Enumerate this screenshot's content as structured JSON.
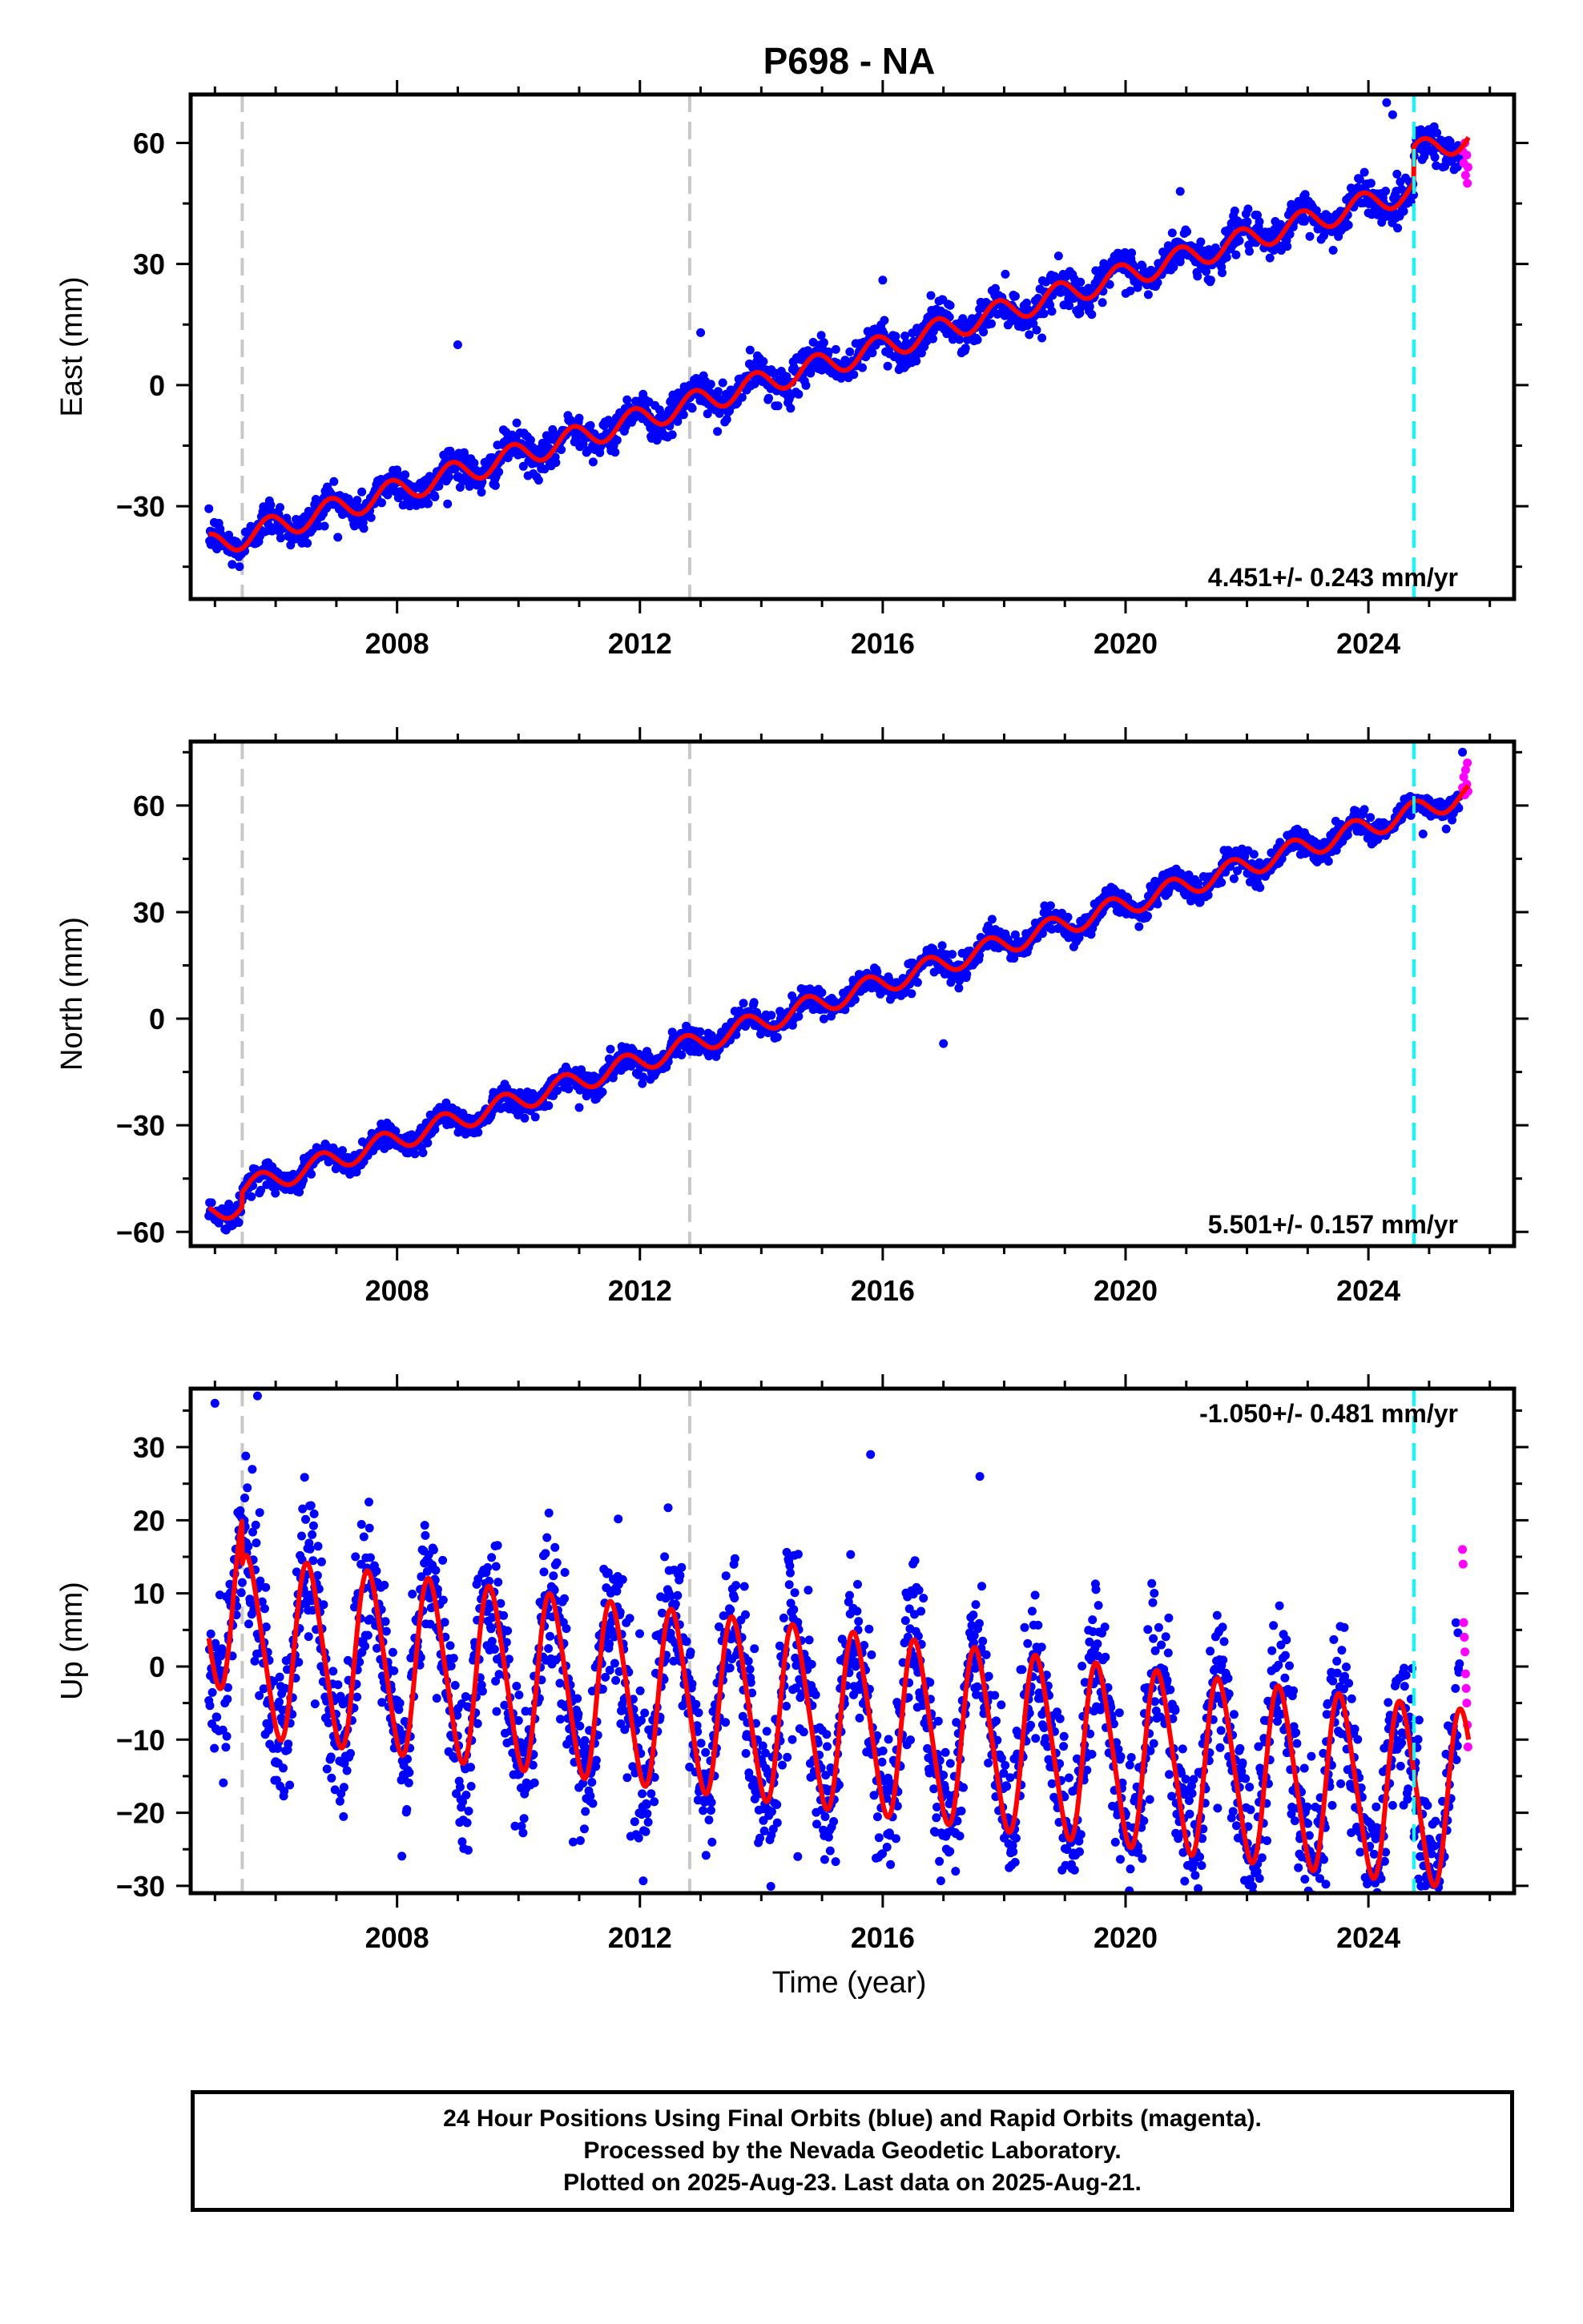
{
  "title": "P698 - NA",
  "xlabel": "Time (year)",
  "x_ticks": [
    2008,
    2012,
    2016,
    2020,
    2024
  ],
  "footer": {
    "line1": "24 Hour Positions Using Final Orbits (blue) and Rapid Orbits (magenta).",
    "line2": "Processed by the Nevada Geodetic Laboratory.",
    "line3": "Plotted on 2025-Aug-23. Last data on 2025-Aug-21."
  },
  "colors": {
    "final_orbits": "#0000ff",
    "rapid_orbits": "#ff00ff",
    "model_fit": "#ff0000",
    "reference_lines": "#c8c8c8",
    "equipment_change": "#00ffff"
  },
  "chart_data": [
    {
      "type": "scatter",
      "ylabel": "East (mm)",
      "rate_label": "4.451+/- 0.243 mm/yr",
      "xlim": [
        2004.6,
        2026.4
      ],
      "ylim": [
        -53,
        72
      ],
      "y_ticks": [
        -30,
        0,
        30,
        60
      ],
      "vertical_lines": {
        "gray_dashed": [
          2005.45,
          2012.82
        ],
        "cyan_dashed": [
          2024.75
        ]
      },
      "model": {
        "start": 2004.9,
        "end": 2025.65,
        "ref_year": 2004.9,
        "offset": -40,
        "rate": 4.451,
        "annual_amplitude": 3.0,
        "annual_phase": 0.35,
        "step": {
          "year": 2024.75,
          "size": 9
        }
      },
      "scatter": {
        "sigma": 2.3,
        "spacing_days": 4
      },
      "rapid_points": [
        [
          2025.55,
          58
        ],
        [
          2025.57,
          55
        ],
        [
          2025.59,
          60
        ],
        [
          2025.6,
          52
        ],
        [
          2025.62,
          57
        ],
        [
          2025.63,
          50
        ],
        [
          2025.64,
          54
        ]
      ],
      "outliers": [
        [
          2024.3,
          70
        ],
        [
          2024.4,
          67
        ],
        [
          2013.0,
          13
        ],
        [
          2009.0,
          10
        ],
        [
          2016.0,
          26
        ],
        [
          2020.9,
          48
        ]
      ],
      "series": [
        {
          "name": "Final Orbits",
          "color": "#0000ff"
        },
        {
          "name": "Rapid Orbits",
          "color": "#ff00ff"
        }
      ]
    },
    {
      "type": "scatter",
      "ylabel": "North (mm)",
      "rate_label": "5.501+/- 0.157 mm/yr",
      "xlim": [
        2004.6,
        2026.4
      ],
      "ylim": [
        -64,
        78
      ],
      "y_ticks": [
        -60,
        -30,
        0,
        30,
        60
      ],
      "vertical_lines": {
        "gray_dashed": [
          2005.45,
          2012.82
        ],
        "cyan_dashed": [
          2024.75
        ]
      },
      "model": {
        "start": 2004.9,
        "end": 2025.65,
        "ref_year": 2004.9,
        "offset": -55,
        "rate": 5.501,
        "annual_amplitude": 3.0,
        "annual_phase": 0.5,
        "step": {
          "year": 2005.45,
          "size": 4
        }
      },
      "scatter": {
        "sigma": 1.8,
        "spacing_days": 4
      },
      "rapid_points": [
        [
          2025.55,
          65
        ],
        [
          2025.57,
          68
        ],
        [
          2025.59,
          63
        ],
        [
          2025.6,
          70
        ],
        [
          2025.62,
          66
        ],
        [
          2025.63,
          72
        ],
        [
          2025.64,
          64
        ]
      ],
      "outliers": [
        [
          2025.55,
          75
        ],
        [
          2024.9,
          52
        ],
        [
          2017.0,
          -7
        ],
        [
          2011.0,
          -25
        ]
      ],
      "series": [
        {
          "name": "Final Orbits",
          "color": "#0000ff"
        },
        {
          "name": "Rapid Orbits",
          "color": "#ff00ff"
        }
      ]
    },
    {
      "type": "scatter",
      "ylabel": "Up (mm)",
      "rate_label": "-1.050+/- 0.481 mm/yr",
      "xlim": [
        2004.6,
        2026.4
      ],
      "ylim": [
        -31,
        38
      ],
      "y_ticks": [
        -30,
        -20,
        -10,
        0,
        10,
        20,
        30
      ],
      "vertical_lines": {
        "gray_dashed": [
          2005.45,
          2012.82
        ],
        "cyan_dashed": [
          2024.75
        ]
      },
      "model": {
        "start": 2004.9,
        "end": 2025.65,
        "ref_year": 2004.9,
        "offset": 9.5,
        "rate": -1.05,
        "annual_amplitude": 12,
        "annual_phase": 0.7,
        "semiannual_amplitude": 1.5,
        "step": {
          "year": 2005.45,
          "size": -6
        }
      },
      "scatter": {
        "sigma": 5.2,
        "spacing_days": 3
      },
      "rapid_points": [
        [
          2025.55,
          16
        ],
        [
          2025.56,
          14
        ],
        [
          2025.57,
          6
        ],
        [
          2025.58,
          4
        ],
        [
          2025.59,
          2
        ],
        [
          2025.6,
          -1
        ],
        [
          2025.61,
          -3
        ],
        [
          2025.62,
          -5
        ],
        [
          2025.63,
          -8
        ],
        [
          2025.64,
          -11
        ]
      ],
      "outliers": [
        [
          2005.7,
          37
        ],
        [
          2005.0,
          36
        ],
        [
          2010.9,
          -24
        ],
        [
          2014.6,
          -26
        ],
        [
          2017.2,
          -28
        ],
        [
          2023.2,
          -29
        ],
        [
          2017.6,
          26
        ],
        [
          2015.8,
          29
        ]
      ],
      "series": [
        {
          "name": "Final Orbits",
          "color": "#0000ff"
        },
        {
          "name": "Rapid Orbits",
          "color": "#ff00ff"
        }
      ]
    }
  ]
}
